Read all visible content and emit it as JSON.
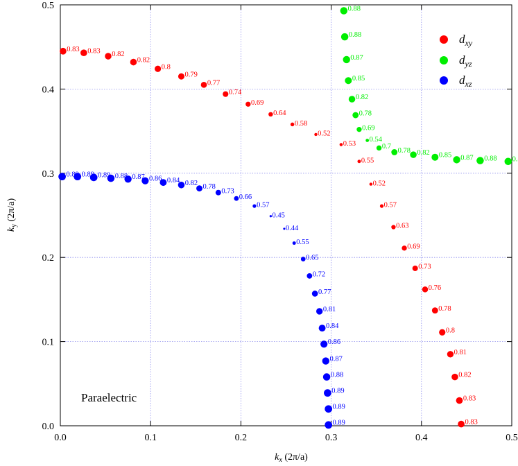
{
  "chart_data": {
    "type": "scatter",
    "x_axis": {
      "label_main": "k",
      "label_sub": "x",
      "label_rest": " (2π/a)",
      "range": [
        0,
        0.5
      ],
      "ticks": [
        0,
        0.1,
        0.2,
        0.3,
        0.4,
        0.5
      ],
      "tick_labels": [
        "0.0",
        "0.1",
        "0.2",
        "0.3",
        "0.4",
        "0.5"
      ]
    },
    "y_axis": {
      "label_main": "k",
      "label_sub": "y",
      "label_rest": " (2π/a)",
      "range": [
        0,
        0.5
      ],
      "ticks": [
        0,
        0.1,
        0.2,
        0.3,
        0.4,
        0.5
      ],
      "tick_labels": [
        "0.0",
        "0.1",
        "0.2",
        "0.3",
        "0.4",
        "0.5"
      ]
    },
    "grid": true,
    "legend_position": "top-right",
    "annotation": "Paraelectric",
    "series": [
      {
        "name_main": "d",
        "name_sub": "xy",
        "color": "#ff0000",
        "points": [
          {
            "x": 0.003,
            "y": 0.445,
            "w": 0.83
          },
          {
            "x": 0.026,
            "y": 0.443,
            "w": 0.83
          },
          {
            "x": 0.053,
            "y": 0.439,
            "w": 0.82
          },
          {
            "x": 0.081,
            "y": 0.432,
            "w": 0.82
          },
          {
            "x": 0.108,
            "y": 0.424,
            "w": 0.8
          },
          {
            "x": 0.134,
            "y": 0.415,
            "w": 0.79
          },
          {
            "x": 0.159,
            "y": 0.405,
            "w": 0.77
          },
          {
            "x": 0.183,
            "y": 0.394,
            "w": 0.74
          },
          {
            "x": 0.208,
            "y": 0.382,
            "w": 0.69
          },
          {
            "x": 0.233,
            "y": 0.37,
            "w": 0.64
          },
          {
            "x": 0.257,
            "y": 0.358,
            "w": 0.58
          },
          {
            "x": 0.283,
            "y": 0.346,
            "w": 0.52
          },
          {
            "x": 0.311,
            "y": 0.334,
            "w": 0.53
          },
          {
            "x": 0.331,
            "y": 0.314,
            "w": 0.55
          },
          {
            "x": 0.344,
            "y": 0.287,
            "w": 0.52
          },
          {
            "x": 0.356,
            "y": 0.261,
            "w": 0.57
          },
          {
            "x": 0.369,
            "y": 0.236,
            "w": 0.63
          },
          {
            "x": 0.381,
            "y": 0.211,
            "w": 0.69
          },
          {
            "x": 0.393,
            "y": 0.187,
            "w": 0.73
          },
          {
            "x": 0.404,
            "y": 0.162,
            "w": 0.76
          },
          {
            "x": 0.415,
            "y": 0.137,
            "w": 0.78
          },
          {
            "x": 0.423,
            "y": 0.111,
            "w": 0.8
          },
          {
            "x": 0.432,
            "y": 0.085,
            "w": 0.81
          },
          {
            "x": 0.437,
            "y": 0.058,
            "w": 0.82
          },
          {
            "x": 0.442,
            "y": 0.03,
            "w": 0.83
          },
          {
            "x": 0.444,
            "y": 0.002,
            "w": 0.83
          }
        ]
      },
      {
        "name_main": "d",
        "name_sub": "yz",
        "color": "#00ee00",
        "points": [
          {
            "x": 0.314,
            "y": 0.493,
            "w": 0.88
          },
          {
            "x": 0.315,
            "y": 0.462,
            "w": 0.88
          },
          {
            "x": 0.317,
            "y": 0.435,
            "w": 0.87
          },
          {
            "x": 0.319,
            "y": 0.41,
            "w": 0.85
          },
          {
            "x": 0.323,
            "y": 0.388,
            "w": 0.82
          },
          {
            "x": 0.327,
            "y": 0.369,
            "w": 0.78
          },
          {
            "x": 0.331,
            "y": 0.352,
            "w": 0.69
          },
          {
            "x": 0.34,
            "y": 0.339,
            "w": 0.54
          },
          {
            "x": 0.353,
            "y": 0.33,
            "w": 0.7
          },
          {
            "x": 0.37,
            "y": 0.325,
            "w": 0.78
          },
          {
            "x": 0.391,
            "y": 0.322,
            "w": 0.82
          },
          {
            "x": 0.415,
            "y": 0.319,
            "w": 0.85
          },
          {
            "x": 0.439,
            "y": 0.316,
            "w": 0.87
          },
          {
            "x": 0.465,
            "y": 0.315,
            "w": 0.88
          },
          {
            "x": 0.496,
            "y": 0.314,
            "w": 0.88
          }
        ]
      },
      {
        "name_main": "d",
        "name_sub": "xz",
        "color": "#0000ff",
        "points": [
          {
            "x": 0.002,
            "y": 0.296,
            "w": 0.89
          },
          {
            "x": 0.019,
            "y": 0.296,
            "w": 0.89
          },
          {
            "x": 0.037,
            "y": 0.295,
            "w": 0.89
          },
          {
            "x": 0.056,
            "y": 0.294,
            "w": 0.88
          },
          {
            "x": 0.075,
            "y": 0.293,
            "w": 0.87
          },
          {
            "x": 0.094,
            "y": 0.291,
            "w": 0.86
          },
          {
            "x": 0.114,
            "y": 0.289,
            "w": 0.84
          },
          {
            "x": 0.134,
            "y": 0.286,
            "w": 0.82
          },
          {
            "x": 0.154,
            "y": 0.282,
            "w": 0.78
          },
          {
            "x": 0.175,
            "y": 0.277,
            "w": 0.73
          },
          {
            "x": 0.195,
            "y": 0.27,
            "w": 0.66
          },
          {
            "x": 0.215,
            "y": 0.261,
            "w": 0.57
          },
          {
            "x": 0.233,
            "y": 0.249,
            "w": 0.45
          },
          {
            "x": 0.248,
            "y": 0.234,
            "w": 0.44
          },
          {
            "x": 0.259,
            "y": 0.217,
            "w": 0.55
          },
          {
            "x": 0.269,
            "y": 0.198,
            "w": 0.65
          },
          {
            "x": 0.276,
            "y": 0.178,
            "w": 0.72
          },
          {
            "x": 0.282,
            "y": 0.157,
            "w": 0.77
          },
          {
            "x": 0.287,
            "y": 0.136,
            "w": 0.81
          },
          {
            "x": 0.29,
            "y": 0.116,
            "w": 0.84
          },
          {
            "x": 0.292,
            "y": 0.097,
            "w": 0.86
          },
          {
            "x": 0.294,
            "y": 0.077,
            "w": 0.87
          },
          {
            "x": 0.295,
            "y": 0.058,
            "w": 0.88
          },
          {
            "x": 0.296,
            "y": 0.039,
            "w": 0.89
          },
          {
            "x": 0.297,
            "y": 0.02,
            "w": 0.89
          },
          {
            "x": 0.297,
            "y": 0.001,
            "w": 0.89
          }
        ]
      }
    ]
  }
}
